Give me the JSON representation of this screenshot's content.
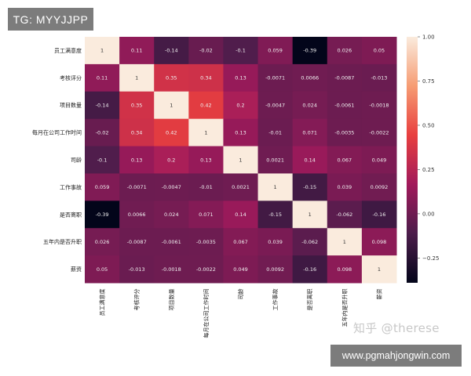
{
  "badge": {
    "text": "TG: MYYJJPP"
  },
  "footer": {
    "url": "www.pgmahjongwin.com"
  },
  "watermark": {
    "text": "知乎 @therese"
  },
  "chart_data": {
    "type": "heatmap",
    "title": "",
    "xlabel": "",
    "ylabel": "",
    "labels": [
      "员工满意度",
      "考核评分",
      "项目数量",
      "每月在公司工作时间",
      "司龄",
      "工作事故",
      "是否离职",
      "五年内是否升职",
      "薪资"
    ],
    "cell_labels": [
      [
        "1",
        "0.11",
        "-0.14",
        "-0.02",
        "-0.1",
        "0.059",
        "-0.39",
        "0.026",
        "0.05"
      ],
      [
        "0.11",
        "1",
        "0.35",
        "0.34",
        "0.13",
        "-0.0071",
        "0.0066",
        "-0.0087",
        "-0.013"
      ],
      [
        "-0.14",
        "0.35",
        "1",
        "0.42",
        "0.2",
        "-0.0047",
        "0.024",
        "-0.0061",
        "-0.0018"
      ],
      [
        "-0.02",
        "0.34",
        "0.42",
        "1",
        "0.13",
        "-0.01",
        "0.071",
        "-0.0035",
        "-0.0022"
      ],
      [
        "-0.1",
        "0.13",
        "0.2",
        "0.13",
        "1",
        "0.0021",
        "0.14",
        "0.067",
        "0.049"
      ],
      [
        "0.059",
        "-0.0071",
        "-0.0047",
        "-0.01",
        "0.0021",
        "1",
        "-0.15",
        "0.039",
        "0.0092"
      ],
      [
        "-0.39",
        "0.0066",
        "0.024",
        "0.071",
        "0.14",
        "-0.15",
        "1",
        "-0.062",
        "-0.16"
      ],
      [
        "0.026",
        "-0.0087",
        "-0.0061",
        "-0.0035",
        "0.067",
        "0.039",
        "-0.062",
        "1",
        "0.098"
      ],
      [
        "0.05",
        "-0.013",
        "-0.0018",
        "-0.0022",
        "0.049",
        "0.0092",
        "-0.16",
        "0.098",
        "1"
      ]
    ],
    "values": [
      [
        1,
        0.11,
        -0.14,
        -0.02,
        -0.1,
        0.059,
        -0.39,
        0.026,
        0.05
      ],
      [
        0.11,
        1,
        0.35,
        0.34,
        0.13,
        -0.0071,
        0.0066,
        -0.0087,
        -0.013
      ],
      [
        -0.14,
        0.35,
        1,
        0.42,
        0.2,
        -0.0047,
        0.024,
        -0.0061,
        -0.0018
      ],
      [
        -0.02,
        0.34,
        0.42,
        1,
        0.13,
        -0.01,
        0.071,
        -0.0035,
        -0.0022
      ],
      [
        -0.1,
        0.13,
        0.2,
        0.13,
        1,
        0.0021,
        0.14,
        0.067,
        0.049
      ],
      [
        0.059,
        -0.0071,
        -0.0047,
        -0.01,
        0.0021,
        1,
        -0.15,
        0.039,
        0.0092
      ],
      [
        -0.39,
        0.0066,
        0.024,
        0.071,
        0.14,
        -0.15,
        1,
        -0.062,
        -0.16
      ],
      [
        0.026,
        -0.0087,
        -0.0061,
        -0.0035,
        0.067,
        0.039,
        -0.062,
        1,
        0.098
      ],
      [
        0.05,
        -0.013,
        -0.0018,
        -0.0022,
        0.049,
        0.0092,
        -0.16,
        0.098,
        1
      ]
    ],
    "colorbar": {
      "range": [
        -0.39,
        1
      ],
      "ticks": [
        1.0,
        0.75,
        0.5,
        0.25,
        0.0,
        -0.25
      ],
      "tick_labels": [
        "1.00",
        "0.75",
        "0.50",
        "0.25",
        "0.00",
        "−0.25"
      ],
      "colormap": "rocket",
      "colormap_stops": [
        "#03051a",
        "#4c1d4b",
        "#a11a5b",
        "#e83f3f",
        "#f69c73",
        "#faebdd"
      ]
    },
    "grid": false
  }
}
